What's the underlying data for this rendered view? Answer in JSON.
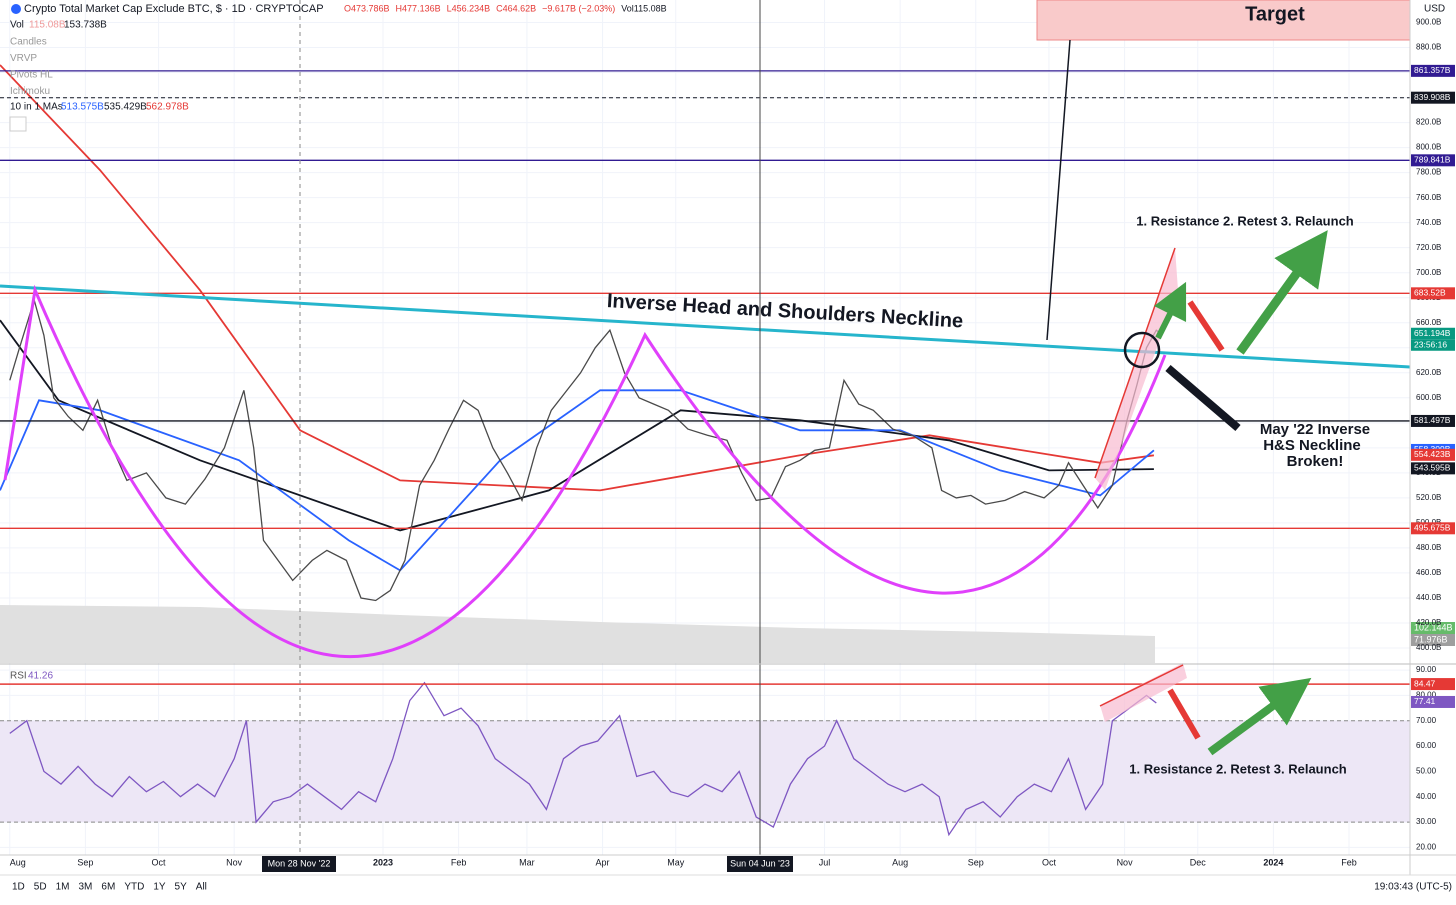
{
  "header": {
    "title": "Crypto Total Market Cap Exclude BTC, $ · 1D · CRYPTOCAP",
    "ohlc": [
      "O473.786B",
      "H477.136B",
      "L456.234B",
      "C464.62B",
      "−9.617B (−2.03%)",
      "Vol115.08B"
    ],
    "vol_label": "Vol",
    "vol_values": [
      "115.08B",
      "153.738B"
    ],
    "indicators": [
      "Candles",
      "VRVP",
      "Pivots HL",
      "Ichimoku"
    ],
    "ma_label": "10 in 1 MAs",
    "ma_values": [
      "513.575B",
      "535.429B",
      "562.978B"
    ],
    "currency": "USD"
  },
  "chart_data": {
    "type": "line",
    "xlim": [
      -4,
      574
    ],
    "xticks": [
      {
        "value": 0,
        "label": "Aug"
      },
      {
        "value": 31,
        "label": "Sep"
      },
      {
        "value": 61,
        "label": "Oct"
      },
      {
        "value": 92,
        "label": "Nov"
      },
      {
        "value": 153,
        "label": "2023"
      },
      {
        "value": 184,
        "label": "Feb"
      },
      {
        "value": 212,
        "label": "Mar"
      },
      {
        "value": 243,
        "label": "Apr"
      },
      {
        "value": 273,
        "label": "May"
      },
      {
        "value": 334,
        "label": "Jul"
      },
      {
        "value": 365,
        "label": "Aug"
      },
      {
        "value": 396,
        "label": "Sep"
      },
      {
        "value": 426,
        "label": "Oct"
      },
      {
        "value": 457,
        "label": "Nov"
      },
      {
        "value": 487,
        "label": "Dec"
      },
      {
        "value": 518,
        "label": "2024"
      },
      {
        "value": 549,
        "label": "Feb"
      }
    ],
    "ylim": [
      388,
      918
    ],
    "yticks": [
      {
        "value": 400,
        "label": "400.0B"
      },
      {
        "value": 420,
        "label": "420.0B"
      },
      {
        "value": 440,
        "label": "440.0B"
      },
      {
        "value": 460,
        "label": "460.0B"
      },
      {
        "value": 480,
        "label": "480.0B"
      },
      {
        "value": 500,
        "label": "500.0B"
      },
      {
        "value": 520,
        "label": "520.0B"
      },
      {
        "value": 540,
        "label": "540.0B"
      },
      {
        "value": 560,
        "label": "560.0B"
      },
      {
        "value": 580,
        "label": "580.0B"
      },
      {
        "value": 600,
        "label": "600.0B"
      },
      {
        "value": 620,
        "label": "620.0B"
      },
      {
        "value": 640,
        "label": "640.0B"
      },
      {
        "value": 660,
        "label": "660.0B"
      },
      {
        "value": 680,
        "label": "680.0B"
      },
      {
        "value": 700,
        "label": "700.0B"
      },
      {
        "value": 720,
        "label": "720.0B"
      },
      {
        "value": 740,
        "label": "740.0B"
      },
      {
        "value": 760,
        "label": "760.0B"
      },
      {
        "value": 780,
        "label": "780.0B"
      },
      {
        "value": 800,
        "label": "800.0B"
      },
      {
        "value": 820,
        "label": "820.0B"
      },
      {
        "value": 840,
        "label": "840.0B"
      },
      {
        "value": 860,
        "label": "860.0B"
      },
      {
        "value": 880,
        "label": "880.0B"
      },
      {
        "value": 900,
        "label": "900.0B"
      }
    ],
    "grid": true,
    "price": {
      "color": "#4a4a4a",
      "x": [
        0,
        4,
        10,
        14,
        18,
        24,
        30,
        36,
        42,
        48,
        56,
        64,
        72,
        80,
        88,
        96,
        100,
        104,
        110,
        116,
        124,
        130,
        138,
        144,
        150,
        156,
        162,
        168,
        174,
        180,
        186,
        192,
        198,
        204,
        210,
        216,
        222,
        228,
        234,
        240,
        246,
        252,
        258,
        264,
        270,
        278,
        286,
        294,
        300,
        306,
        312,
        318,
        324,
        330,
        336,
        342,
        348,
        354,
        362,
        370,
        378,
        382,
        388,
        394,
        400,
        408,
        416,
        424,
        430,
        434,
        440,
        446,
        452,
        458,
        462,
        466,
        470,
        472
      ],
      "values": [
        614,
        640,
        678,
        650,
        600,
        585,
        574,
        598,
        560,
        534,
        540,
        520,
        515,
        535,
        560,
        606,
        560,
        486,
        470,
        454,
        470,
        478,
        470,
        440,
        438,
        446,
        470,
        530,
        550,
        575,
        598,
        590,
        560,
        540,
        518,
        560,
        590,
        605,
        620,
        640,
        654,
        620,
        600,
        595,
        590,
        575,
        570,
        566,
        540,
        518,
        520,
        545,
        550,
        558,
        560,
        614,
        595,
        590,
        575,
        570,
        560,
        526,
        520,
        522,
        515,
        518,
        525,
        520,
        530,
        548,
        530,
        512,
        530,
        582,
        610,
        640,
        654,
        651
      ]
    },
    "moving_averages": [
      {
        "color": "#e53935",
        "x": [
          -4,
          37,
          78,
          119,
          160,
          242,
          324,
          377,
          447,
          469
        ],
        "values": [
          866,
          782,
          686,
          574,
          534,
          526,
          554,
          570,
          548,
          554
        ]
      },
      {
        "color": "#131722",
        "x": [
          -4,
          20,
          78,
          160,
          221,
          275,
          324,
          385,
          426,
          469
        ],
        "values": [
          662,
          598,
          550,
          494,
          526,
          590,
          582,
          566,
          542,
          543
        ]
      },
      {
        "color": "#2962ff",
        "x": [
          -4,
          12,
          37,
          94,
          139,
          160,
          201,
          242,
          275,
          324,
          365,
          406,
          447,
          469
        ],
        "values": [
          526,
          598,
          590,
          550,
          486,
          462,
          550,
          606,
          606,
          574,
          574,
          542,
          522,
          558
        ]
      }
    ],
    "levels": [
      {
        "value": 861.357,
        "label": "861.357B",
        "color": "#311b92"
      },
      {
        "value": 839.908,
        "label": "839.908B",
        "color": "#131722"
      },
      {
        "value": 789.841,
        "label": "789.841B",
        "color": "#311b92"
      },
      {
        "value": 683.52,
        "label": "683.52B",
        "color": "#e53935"
      },
      {
        "value": 581.497,
        "label": "581.497B",
        "color": "#131722"
      },
      {
        "value": 495.675,
        "label": "495.675B",
        "color": "#e53935"
      }
    ],
    "price_labels": [
      {
        "value": 651.194,
        "label": "651.194B",
        "color": "#089981"
      },
      {
        "value": 558.309,
        "label": "558.309B",
        "color": "#2962ff"
      },
      {
        "value": 554.423,
        "label": "554.423B",
        "color": "#e53935"
      },
      {
        "value": 543.595,
        "label": "543.595B",
        "color": "#131722"
      }
    ],
    "countdown": "23:56:16",
    "volume_labels": [
      "102.144B",
      "71.976B"
    ],
    "annotations": {
      "target": "Target",
      "neckline": "Inverse Head and Shoulders Neckline",
      "plan": "1. Resistance 2. Retest 3. Relaunch",
      "broken": [
        "May '22 Inverse",
        "H&S Neckline",
        "Broken!"
      ],
      "rsi_plan": "1. Resistance 2. Retest 3. Relaunch"
    },
    "crosshair_labels": [
      "Mon 28 Nov '22",
      "Sun 04 Jun '23"
    ],
    "rsi": {
      "label": "RSI",
      "value_label": "41.26",
      "color": "#7e57c2",
      "ylim": [
        17,
        92
      ],
      "yticks": [
        {
          "value": 20,
          "label": "20.00"
        },
        {
          "value": 30,
          "label": "30.00"
        },
        {
          "value": 40,
          "label": "40.00"
        },
        {
          "value": 50,
          "label": "50.00"
        },
        {
          "value": 60,
          "label": "60.00"
        },
        {
          "value": 70,
          "label": "70.00"
        },
        {
          "value": 80,
          "label": "80.00"
        },
        {
          "value": 90,
          "label": "90.00"
        }
      ],
      "x": [
        0,
        7,
        14,
        21,
        28,
        35,
        42,
        49,
        56,
        63,
        70,
        77,
        84,
        92,
        97,
        101,
        108,
        115,
        122,
        129,
        136,
        143,
        150,
        157,
        164,
        170,
        178,
        185,
        192,
        199,
        206,
        213,
        220,
        227,
        234,
        241,
        250,
        257,
        264,
        271,
        278,
        285,
        292,
        299,
        306,
        313,
        320,
        327,
        334,
        339,
        346,
        353,
        360,
        367,
        374,
        381,
        385,
        392,
        399,
        406,
        413,
        420,
        427,
        434,
        441,
        448,
        452,
        459,
        466,
        470
      ],
      "values": [
        65,
        70,
        50,
        45,
        52,
        45,
        40,
        48,
        42,
        46,
        40,
        45,
        40,
        55,
        70,
        30,
        38,
        40,
        45,
        40,
        35,
        42,
        38,
        55,
        78,
        85,
        72,
        75,
        68,
        55,
        50,
        45,
        35,
        55,
        60,
        62,
        72,
        48,
        50,
        42,
        40,
        45,
        42,
        50,
        32,
        28,
        45,
        55,
        60,
        70,
        55,
        50,
        45,
        42,
        45,
        40,
        25,
        35,
        38,
        32,
        40,
        45,
        42,
        55,
        35,
        45,
        70,
        75,
        80,
        77
      ],
      "band": [
        30,
        70
      ],
      "level": {
        "value": 84.47,
        "label": "84.47"
      },
      "current": {
        "value": 77.41,
        "label": "77.41"
      }
    }
  },
  "toolbar": {
    "ranges": [
      "1D",
      "5D",
      "1M",
      "3M",
      "6M",
      "YTD",
      "1Y",
      "5Y",
      "All"
    ],
    "clock": "19:03:43 (UTC-5)"
  }
}
